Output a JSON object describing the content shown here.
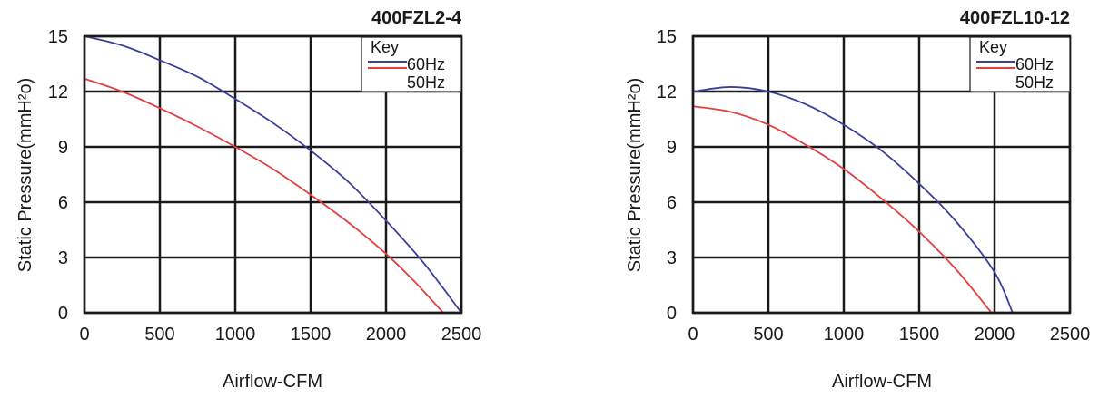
{
  "chart_data": [
    {
      "type": "line",
      "title": "400FZL2-4",
      "xlabel": "Airflow-CFM",
      "ylabel": "Static Pressure(mmH²o)",
      "xlim": [
        0,
        2500
      ],
      "ylim": [
        0,
        15
      ],
      "x_ticks": [
        "0",
        "500",
        "1000",
        "1500",
        "2000",
        "2500"
      ],
      "y_ticks": [
        "0",
        "3",
        "6",
        "9",
        "12",
        "15"
      ],
      "grid": true,
      "legend_position": "top-right",
      "legend_title": "Key",
      "series": [
        {
          "name": "60Hz",
          "color": "#3a3f9e",
          "x": [
            0,
            250,
            500,
            750,
            1000,
            1250,
            1500,
            1750,
            2000,
            2250,
            2500
          ],
          "y": [
            15.0,
            14.5,
            13.7,
            12.8,
            11.6,
            10.3,
            8.8,
            7.1,
            5.0,
            2.7,
            0.0
          ]
        },
        {
          "name": "50Hz",
          "color": "#e04040",
          "x": [
            0,
            250,
            500,
            750,
            1000,
            1250,
            1500,
            1750,
            2000,
            2200,
            2380
          ],
          "y": [
            12.7,
            12.0,
            11.1,
            10.1,
            9.0,
            7.8,
            6.4,
            4.9,
            3.2,
            1.6,
            0.0
          ]
        }
      ]
    },
    {
      "type": "line",
      "title": "400FZL10-12",
      "xlabel": "Airflow-CFM",
      "ylabel": "Static Pressure(mmH²o)",
      "xlim": [
        0,
        2500
      ],
      "ylim": [
        0,
        15
      ],
      "x_ticks": [
        "0",
        "500",
        "1000",
        "1500",
        "2000",
        "2500"
      ],
      "y_ticks": [
        "0",
        "3",
        "6",
        "9",
        "12",
        "15"
      ],
      "grid": true,
      "legend_position": "top-right",
      "legend_title": "Key",
      "series": [
        {
          "name": "60Hz",
          "color": "#3a3f9e",
          "x": [
            0,
            250,
            500,
            750,
            1000,
            1250,
            1500,
            1750,
            2000,
            2120
          ],
          "y": [
            12.0,
            12.25,
            12.0,
            11.3,
            10.2,
            8.8,
            7.0,
            4.9,
            2.2,
            0.0
          ]
        },
        {
          "name": "50Hz",
          "color": "#e04040",
          "x": [
            0,
            250,
            500,
            750,
            1000,
            1250,
            1500,
            1750,
            1980
          ],
          "y": [
            11.2,
            10.9,
            10.2,
            9.1,
            7.8,
            6.2,
            4.4,
            2.3,
            0.0
          ]
        }
      ]
    }
  ]
}
